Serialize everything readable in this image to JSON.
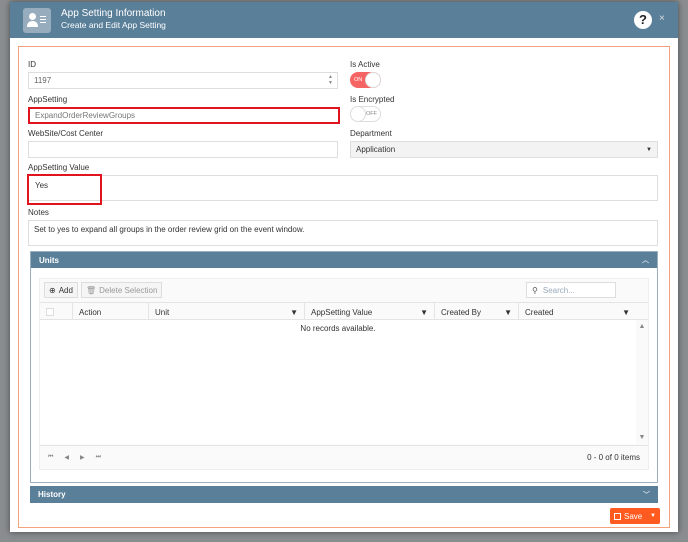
{
  "header": {
    "title": "App Setting Information",
    "subtitle": "Create and Edit App Setting",
    "icon": "contact-card-icon",
    "help_icon": "question-circle-icon",
    "close_icon": "close-icon"
  },
  "form": {
    "id_label": "ID",
    "id_value": "1197",
    "is_active_label": "Is Active",
    "is_active_state": "ON",
    "appsetting_label": "AppSetting",
    "appsetting_value": "ExpandOrderReviewGroups",
    "is_encrypted_label": "Is Encrypted",
    "is_encrypted_state": "OFF",
    "website_label": "WebSite/Cost Center",
    "website_value": "",
    "department_label": "Department",
    "department_value": "Application",
    "value_label": "AppSetting Value",
    "value_value": "Yes",
    "notes_label": "Notes",
    "notes_value": "Set to yes to expand all groups in the order review grid on the event window."
  },
  "units": {
    "title": "Units",
    "add_label": "Add",
    "delete_label": "Delete Selection",
    "search_placeholder": "Search...",
    "columns": [
      "Action",
      "Unit",
      "AppSetting Value",
      "Created By",
      "Created"
    ],
    "empty_text": "No records available.",
    "pager_text": "0 - 0 of 0 items"
  },
  "history": {
    "title": "History"
  },
  "footer": {
    "save_label": "Save"
  },
  "colors": {
    "accent": "#ff5a1f",
    "header": "#5a7f99",
    "highlight": "#e0141e",
    "toggle_on": "#f76464"
  }
}
